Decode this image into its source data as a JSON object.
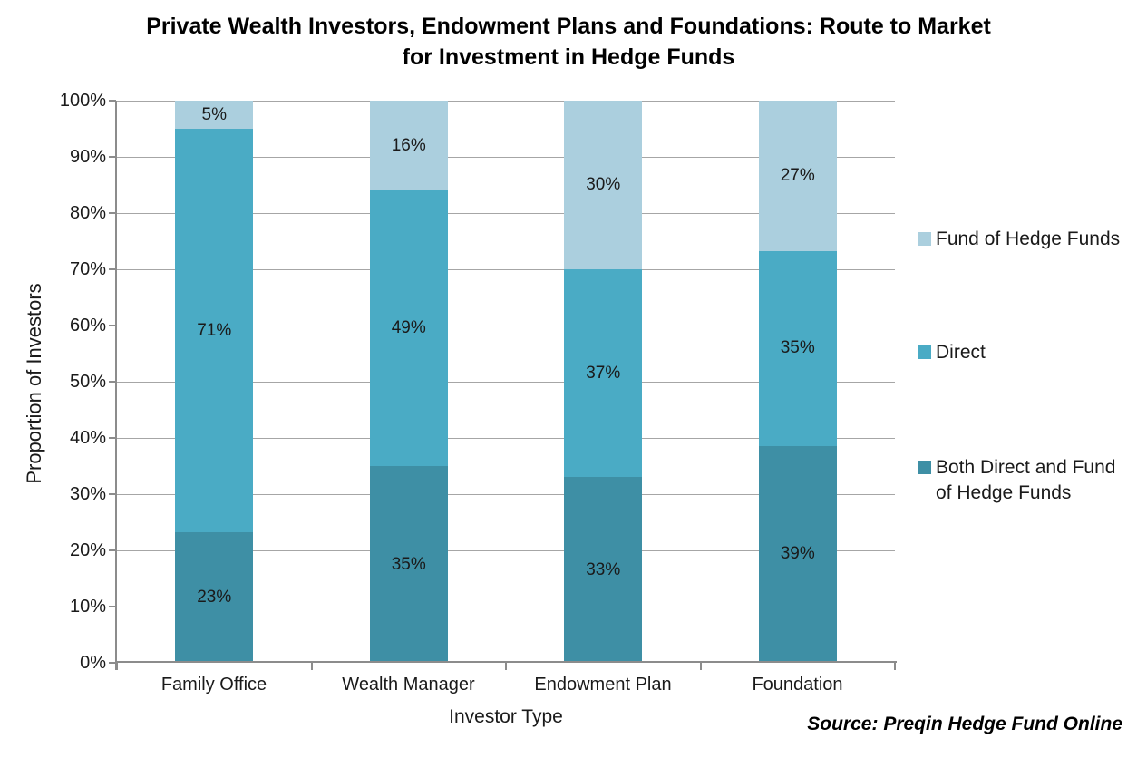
{
  "title_text": "Private Wealth Investors, Endowment Plans and Foundations: Route to Market for Investment in Hedge Funds",
  "source_note": "Source: Preqin Hedge Fund Online",
  "colors": {
    "grid": "#a6a6a6",
    "axis": "#8c8c8c",
    "both_direct_and_fohf": "#3E8FA5",
    "direct": "#4AABC5",
    "fund_of_hedge_funds": "#ABCFDE"
  },
  "chart_data": {
    "type": "bar",
    "stacked": true,
    "percent_stacked": true,
    "title": "Private Wealth Investors, Endowment Plans and Foundations: Route to Market for Investment in Hedge Funds",
    "xlabel": "Investor Type",
    "ylabel": "Proportion of Investors",
    "categories": [
      "Family Office",
      "Wealth Manager",
      "Endowment Plan",
      "Foundation"
    ],
    "series": [
      {
        "name": "Both Direct and Fund of Hedge Funds",
        "color": "#3E8FA5",
        "values": [
          23,
          35,
          33,
          39
        ]
      },
      {
        "name": "Direct",
        "color": "#4AABC5",
        "values": [
          71,
          49,
          37,
          35
        ]
      },
      {
        "name": "Fund of Hedge Funds",
        "color": "#ABCFDE",
        "values": [
          5,
          16,
          30,
          27
        ]
      }
    ],
    "data_label_suffix": "%",
    "ylim": [
      0,
      100
    ],
    "yticks": [
      "0%",
      "10%",
      "20%",
      "30%",
      "40%",
      "50%",
      "60%",
      "70%",
      "80%",
      "90%",
      "100%"
    ],
    "grid": true,
    "legend_position": "right",
    "legend_order_top_to_bottom": [
      "Fund of Hedge Funds",
      "Direct",
      "Both Direct and Fund of Hedge Funds"
    ]
  }
}
